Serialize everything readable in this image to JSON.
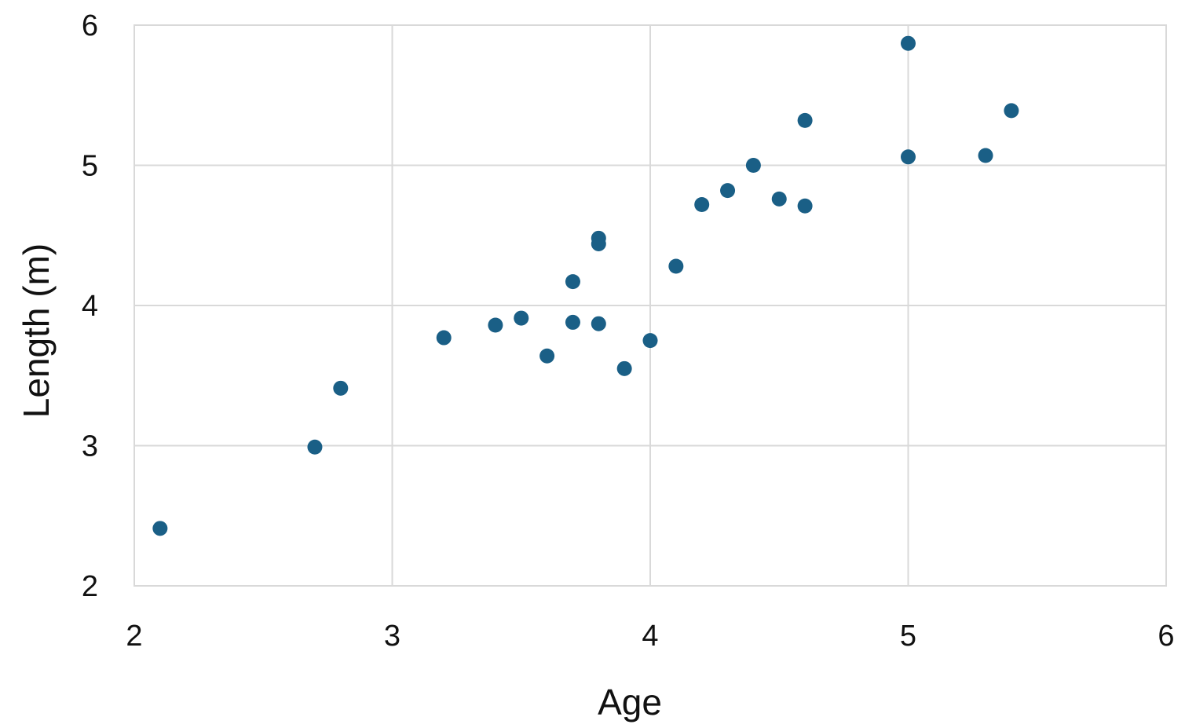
{
  "chart_data": {
    "type": "scatter",
    "title": "",
    "xlabel": "Age",
    "ylabel": "Length (m)",
    "xlim": [
      2,
      6
    ],
    "ylim": [
      2,
      6
    ],
    "xticks": [
      "2",
      "3",
      "4",
      "5",
      "6"
    ],
    "yticks": [
      "2",
      "3",
      "4",
      "5",
      "6"
    ],
    "grid": true,
    "legend": "none",
    "colors": {
      "point": "#1a5f86",
      "grid": "#d9d9d9",
      "text": "#111111"
    },
    "series": [
      {
        "points": [
          {
            "x": 2.1,
            "y": 2.41
          },
          {
            "x": 2.7,
            "y": 2.99
          },
          {
            "x": 2.8,
            "y": 3.41
          },
          {
            "x": 3.2,
            "y": 3.77
          },
          {
            "x": 3.4,
            "y": 3.86
          },
          {
            "x": 3.5,
            "y": 3.91
          },
          {
            "x": 3.6,
            "y": 3.64
          },
          {
            "x": 3.7,
            "y": 4.17
          },
          {
            "x": 3.7,
            "y": 3.88
          },
          {
            "x": 3.8,
            "y": 4.48
          },
          {
            "x": 3.8,
            "y": 4.44
          },
          {
            "x": 3.8,
            "y": 3.87
          },
          {
            "x": 3.9,
            "y": 3.55
          },
          {
            "x": 4.0,
            "y": 3.75
          },
          {
            "x": 4.1,
            "y": 4.28
          },
          {
            "x": 4.2,
            "y": 4.72
          },
          {
            "x": 4.3,
            "y": 4.82
          },
          {
            "x": 4.4,
            "y": 5.0
          },
          {
            "x": 4.5,
            "y": 4.76
          },
          {
            "x": 4.6,
            "y": 5.32
          },
          {
            "x": 4.6,
            "y": 4.71
          },
          {
            "x": 5.0,
            "y": 5.87
          },
          {
            "x": 5.0,
            "y": 5.06
          },
          {
            "x": 5.3,
            "y": 5.07
          },
          {
            "x": 5.4,
            "y": 5.39
          }
        ]
      }
    ]
  }
}
